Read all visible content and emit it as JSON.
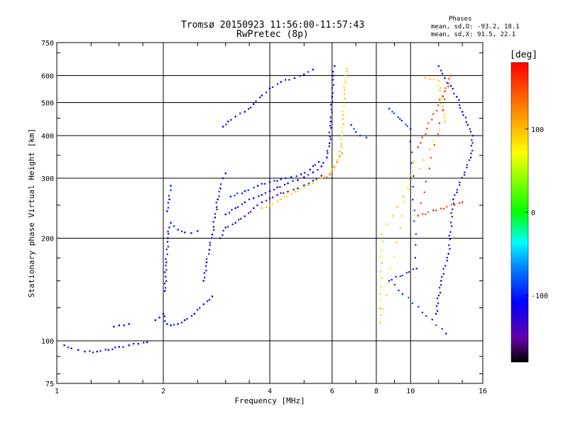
{
  "titles": {
    "line1": "Tromsø 20150923 11:56:00-11:57:43",
    "line2": "RwPretec (8p)"
  },
  "phases_box": {
    "header": "Phases",
    "line_o": "mean, sd,O: -93.2, 18.1",
    "line_x": "mean, sd,X:  91.5, 22.1"
  },
  "colorbar": {
    "title": "[deg]",
    "ticks": [
      "100",
      "0",
      "-100"
    ],
    "tick_values": [
      100,
      0,
      -100
    ],
    "range": [
      -180,
      180
    ]
  },
  "chart_data": {
    "type": "scatter",
    "xlabel": "Frequency [MHz]",
    "ylabel": "Stationary phase Virtual Height [km]",
    "x_scale": "log",
    "y_scale": "log",
    "xlim": [
      1,
      16
    ],
    "ylim": [
      75,
      750
    ],
    "x_ticks": [
      1,
      2,
      4,
      6,
      8,
      10,
      16
    ],
    "x_tick_labels": [
      "1",
      "2",
      "4",
      "6",
      "8",
      "10",
      "16"
    ],
    "y_ticks": [
      75,
      100,
      200,
      300,
      400,
      500,
      600,
      750
    ],
    "y_tick_labels": [
      "75",
      "100",
      "200",
      "300",
      "400",
      "500",
      "600",
      "750"
    ],
    "grid": true,
    "color_variable": "phase [deg]",
    "traces": [
      {
        "phase": -115,
        "points": [
          [
            1.05,
            97
          ],
          [
            1.1,
            95
          ],
          [
            1.15,
            94
          ],
          [
            1.2,
            93
          ],
          [
            1.3,
            93
          ],
          [
            1.4,
            94
          ],
          [
            1.5,
            96
          ],
          [
            1.6,
            97
          ],
          [
            1.7,
            98
          ],
          [
            1.8,
            99
          ]
        ]
      },
      {
        "phase": -110,
        "points": [
          [
            1.45,
            110
          ],
          [
            1.5,
            111
          ],
          [
            1.55,
            111
          ],
          [
            1.6,
            112
          ]
        ]
      },
      {
        "phase": -112,
        "points": [
          [
            1.9,
            115
          ],
          [
            1.95,
            117
          ],
          [
            2.0,
            120
          ],
          [
            2.05,
            112
          ],
          [
            2.1,
            111
          ],
          [
            2.2,
            112
          ],
          [
            2.3,
            115
          ],
          [
            2.45,
            120
          ],
          [
            2.6,
            128
          ],
          [
            2.75,
            135
          ]
        ]
      },
      {
        "phase": -105,
        "points": [
          [
            2.02,
            140
          ],
          [
            2.04,
            170
          ],
          [
            2.06,
            200
          ],
          [
            2.08,
            215
          ],
          [
            2.1,
            222
          ],
          [
            2.2,
            212
          ],
          [
            2.3,
            208
          ],
          [
            2.4,
            207
          ],
          [
            2.5,
            210
          ]
        ]
      },
      {
        "phase": -108,
        "points": [
          [
            2.05,
            240
          ],
          [
            2.08,
            260
          ],
          [
            2.1,
            285
          ]
        ]
      },
      {
        "phase": -110,
        "points": [
          [
            2.6,
            150
          ],
          [
            2.65,
            170
          ],
          [
            2.7,
            185
          ],
          [
            2.75,
            205
          ],
          [
            2.8,
            230
          ],
          [
            2.85,
            260
          ],
          [
            2.9,
            280
          ],
          [
            2.95,
            300
          ],
          [
            3.0,
            310
          ]
        ]
      },
      {
        "phase": -130,
        "points": [
          [
            2.9,
            200
          ],
          [
            3.0,
            215
          ],
          [
            3.2,
            222
          ],
          [
            3.4,
            232
          ],
          [
            3.6,
            245
          ],
          [
            3.8,
            255
          ],
          [
            4.0,
            262
          ],
          [
            4.2,
            268
          ],
          [
            4.5,
            274
          ],
          [
            4.8,
            280
          ],
          [
            5.0,
            286
          ],
          [
            5.3,
            295
          ],
          [
            5.6,
            305
          ]
        ]
      },
      {
        "phase": -112,
        "points": [
          [
            3.0,
            235
          ],
          [
            3.2,
            245
          ],
          [
            3.4,
            255
          ],
          [
            3.6,
            262
          ],
          [
            3.8,
            268
          ],
          [
            4.0,
            275
          ],
          [
            4.2,
            282
          ],
          [
            4.5,
            290
          ],
          [
            4.8,
            296
          ],
          [
            5.0,
            302
          ],
          [
            5.3,
            312
          ],
          [
            5.6,
            325
          ],
          [
            5.8,
            345
          ],
          [
            5.9,
            380
          ],
          [
            5.95,
            440
          ],
          [
            6.0,
            520
          ],
          [
            6.05,
            600
          ],
          [
            6.1,
            640
          ]
        ]
      },
      {
        "phase": -108,
        "points": [
          [
            3.1,
            265
          ],
          [
            3.4,
            275
          ],
          [
            3.7,
            285
          ],
          [
            4.0,
            292
          ],
          [
            4.3,
            298
          ],
          [
            4.6,
            302
          ],
          [
            4.9,
            308
          ],
          [
            5.2,
            318
          ],
          [
            5.5,
            335
          ]
        ]
      },
      {
        "phase": -115,
        "points": [
          [
            2.95,
            425
          ],
          [
            3.05,
            440
          ],
          [
            3.2,
            455
          ],
          [
            3.4,
            470
          ],
          [
            3.6,
            495
          ],
          [
            3.8,
            525
          ],
          [
            4.0,
            550
          ],
          [
            4.3,
            575
          ],
          [
            4.7,
            590
          ],
          [
            5.0,
            605
          ],
          [
            5.3,
            625
          ]
        ]
      },
      {
        "phase": 90,
        "points": [
          [
            3.8,
            245
          ],
          [
            4.0,
            250
          ],
          [
            4.3,
            260
          ],
          [
            4.6,
            270
          ],
          [
            5.0,
            282
          ],
          [
            5.3,
            290
          ],
          [
            5.6,
            300
          ],
          [
            5.9,
            310
          ],
          [
            6.1,
            325
          ],
          [
            6.3,
            350
          ],
          [
            6.4,
            400
          ],
          [
            6.45,
            460
          ],
          [
            6.5,
            530
          ],
          [
            6.55,
            600
          ],
          [
            6.6,
            630
          ]
        ]
      },
      {
        "phase": 120,
        "points": [
          [
            5.8,
            302
          ],
          [
            6.0,
            315
          ],
          [
            6.2,
            335
          ],
          [
            6.4,
            355
          ]
        ]
      },
      {
        "phase": -95,
        "points": [
          [
            6.8,
            430
          ],
          [
            7.0,
            410
          ],
          [
            7.2,
            400
          ],
          [
            7.5,
            395
          ]
        ]
      },
      {
        "phase": -120,
        "points": [
          [
            12.0,
            640
          ],
          [
            12.5,
            590
          ],
          [
            13.0,
            560
          ],
          [
            13.5,
            520
          ],
          [
            14.0,
            470
          ],
          [
            14.5,
            430
          ],
          [
            15.0,
            400
          ],
          [
            14.8,
            345
          ],
          [
            13.2,
            260
          ],
          [
            12.8,
            180
          ],
          [
            12.2,
            150
          ],
          [
            11.8,
            120
          ]
        ]
      },
      {
        "phase": 90,
        "points": [
          [
            11.0,
            590
          ],
          [
            12.0,
            580
          ],
          [
            12.5,
            440
          ],
          [
            8.3,
            205
          ],
          [
            8.2,
            113
          ],
          [
            10.2,
            335
          ]
        ]
      },
      {
        "phase": 160,
        "points": [
          [
            10.5,
            370
          ],
          [
            12.5,
            540
          ],
          [
            13.0,
            600
          ],
          [
            10.5,
            233
          ],
          [
            14.0,
            255
          ]
        ]
      },
      {
        "phase": -95,
        "points": [
          [
            8.7,
            480
          ],
          [
            10.0,
            418
          ],
          [
            10.4,
            163
          ],
          [
            8.7,
            150
          ],
          [
            12.6,
            105
          ]
        ]
      }
    ]
  }
}
